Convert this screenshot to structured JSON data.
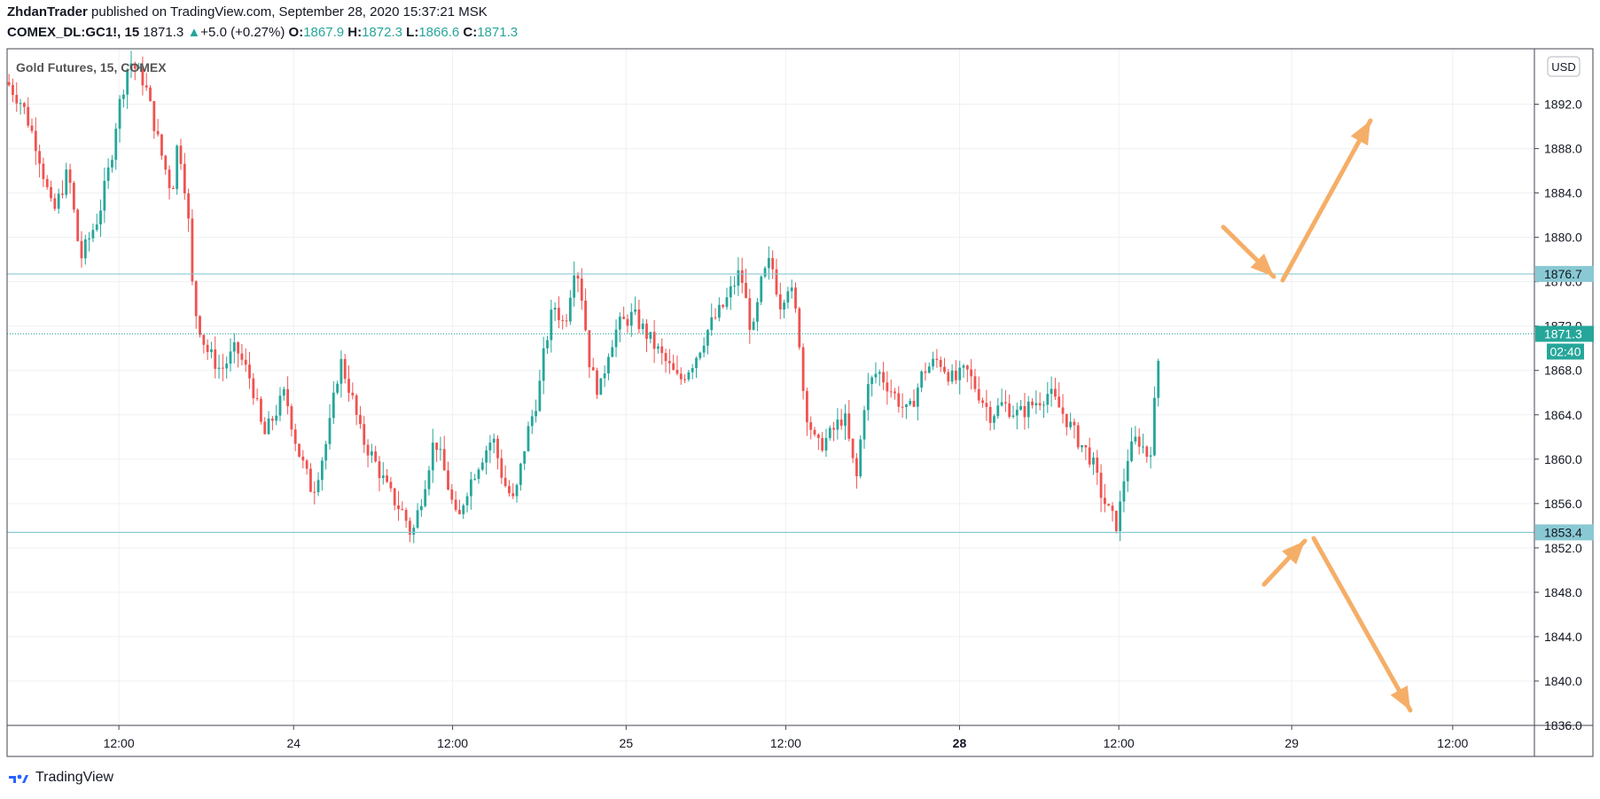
{
  "header": {
    "author": "ZhdanTrader",
    "published_text": "published on TradingView.com, September 28, 2020 15:37:21 MSK",
    "symbol": "COMEX_DL:GC1!, 15",
    "last": "1871.3",
    "change": "+5.0 (+0.27%)",
    "o_label": "O:",
    "o_value": "1867.9",
    "h_label": "H:",
    "h_value": "1872.3",
    "l_label": "L:",
    "l_value": "1866.6",
    "c_label": "C:",
    "c_value": "1871.3"
  },
  "legend_title": "Gold Futures, 15, COMEX",
  "currency": "USD",
  "footer": {
    "brand": "TradingView"
  },
  "colors": {
    "up": "#26a69a",
    "down": "#ef5350",
    "level": "#89c9d3",
    "arrow": "#f5ae67",
    "tag_level": "#89c9d3",
    "tag_price": "#26a69a"
  },
  "chart_data": {
    "type": "candlestick",
    "interval": "15",
    "ylim": [
      1836,
      1897
    ],
    "y_ticks": [
      "1892.0",
      "1888.0",
      "1884.0",
      "1880.0",
      "1876.0",
      "1872.0",
      "1868.0",
      "1864.0",
      "1860.0",
      "1856.0",
      "1852.0",
      "1848.0",
      "1844.0",
      "1840.0",
      "1836.0"
    ],
    "x_ticks": [
      {
        "label": "12:00",
        "pos": 0.0732,
        "bold": false
      },
      {
        "label": "24",
        "pos": 0.1876,
        "bold": false
      },
      {
        "label": "12:00",
        "pos": 0.2917,
        "bold": false
      },
      {
        "label": "25",
        "pos": 0.4053,
        "bold": false
      },
      {
        "label": "12:00",
        "pos": 0.5098,
        "bold": false
      },
      {
        "label": "28",
        "pos": 0.6236,
        "bold": true
      },
      {
        "label": "12:00",
        "pos": 0.7279,
        "bold": false
      },
      {
        "label": "29",
        "pos": 0.8411,
        "bold": false
      },
      {
        "label": "12:00",
        "pos": 0.9465,
        "bold": false
      }
    ],
    "levels": [
      {
        "value": 1876.7,
        "label": "1876.7",
        "style": "solid"
      },
      {
        "value": 1853.4,
        "label": "1853.4",
        "style": "solid"
      }
    ],
    "last_price": {
      "value": 1871.3,
      "label": "1871.3",
      "countdown": "02:40"
    },
    "close_path": [
      [
        0,
        1894
      ],
      [
        0.01,
        1892
      ],
      [
        0.02,
        1888
      ],
      [
        0.03,
        1882
      ],
      [
        0.04,
        1886
      ],
      [
        0.048,
        1878
      ],
      [
        0.06,
        1882
      ],
      [
        0.068,
        1887
      ],
      [
        0.072,
        1891
      ],
      [
        0.08,
        1896
      ],
      [
        0.09,
        1894
      ],
      [
        0.1,
        1888
      ],
      [
        0.108,
        1884
      ],
      [
        0.112,
        1889
      ],
      [
        0.118,
        1883
      ],
      [
        0.122,
        1874
      ],
      [
        0.13,
        1870
      ],
      [
        0.14,
        1868
      ],
      [
        0.15,
        1870
      ],
      [
        0.16,
        1867
      ],
      [
        0.168,
        1862
      ],
      [
        0.175,
        1864
      ],
      [
        0.182,
        1866
      ],
      [
        0.19,
        1861
      ],
      [
        0.2,
        1857
      ],
      [
        0.21,
        1862
      ],
      [
        0.218,
        1869
      ],
      [
        0.225,
        1866
      ],
      [
        0.232,
        1862
      ],
      [
        0.24,
        1860
      ],
      [
        0.25,
        1857
      ],
      [
        0.26,
        1855
      ],
      [
        0.265,
        1853
      ],
      [
        0.272,
        1857
      ],
      [
        0.28,
        1862
      ],
      [
        0.288,
        1858
      ],
      [
        0.295,
        1854
      ],
      [
        0.3,
        1857
      ],
      [
        0.31,
        1860
      ],
      [
        0.318,
        1862
      ],
      [
        0.325,
        1858
      ],
      [
        0.332,
        1856
      ],
      [
        0.34,
        1862
      ],
      [
        0.348,
        1866
      ],
      [
        0.352,
        1870
      ],
      [
        0.358,
        1874
      ],
      [
        0.365,
        1872
      ],
      [
        0.372,
        1878
      ],
      [
        0.376,
        1875
      ],
      [
        0.382,
        1868
      ],
      [
        0.388,
        1866
      ],
      [
        0.394,
        1870
      ],
      [
        0.4,
        1872
      ],
      [
        0.41,
        1873
      ],
      [
        0.42,
        1871
      ],
      [
        0.43,
        1869
      ],
      [
        0.44,
        1867
      ],
      [
        0.45,
        1869
      ],
      [
        0.46,
        1872
      ],
      [
        0.47,
        1874
      ],
      [
        0.48,
        1877
      ],
      [
        0.488,
        1871
      ],
      [
        0.494,
        1876
      ],
      [
        0.5,
        1878
      ],
      [
        0.506,
        1874
      ],
      [
        0.512,
        1876
      ],
      [
        0.518,
        1872
      ],
      [
        0.522,
        1865
      ],
      [
        0.53,
        1861
      ],
      [
        0.538,
        1862
      ],
      [
        0.548,
        1864
      ],
      [
        0.556,
        1858
      ],
      [
        0.562,
        1866
      ],
      [
        0.57,
        1868
      ],
      [
        0.58,
        1866
      ],
      [
        0.59,
        1864
      ],
      [
        0.6,
        1868
      ],
      [
        0.61,
        1869
      ],
      [
        0.62,
        1867
      ],
      [
        0.628,
        1868
      ],
      [
        0.636,
        1866
      ],
      [
        0.644,
        1864
      ],
      [
        0.652,
        1865
      ],
      [
        0.662,
        1864
      ],
      [
        0.672,
        1865
      ],
      [
        0.682,
        1866
      ],
      [
        0.692,
        1864
      ],
      [
        0.7,
        1862
      ],
      [
        0.71,
        1860
      ],
      [
        0.716,
        1857
      ],
      [
        0.722,
        1855
      ],
      [
        0.727,
        1854
      ],
      [
        0.733,
        1860
      ],
      [
        0.74,
        1862
      ],
      [
        0.748,
        1860
      ],
      [
        0.752,
        1866
      ],
      [
        0.755,
        1871
      ]
    ]
  }
}
